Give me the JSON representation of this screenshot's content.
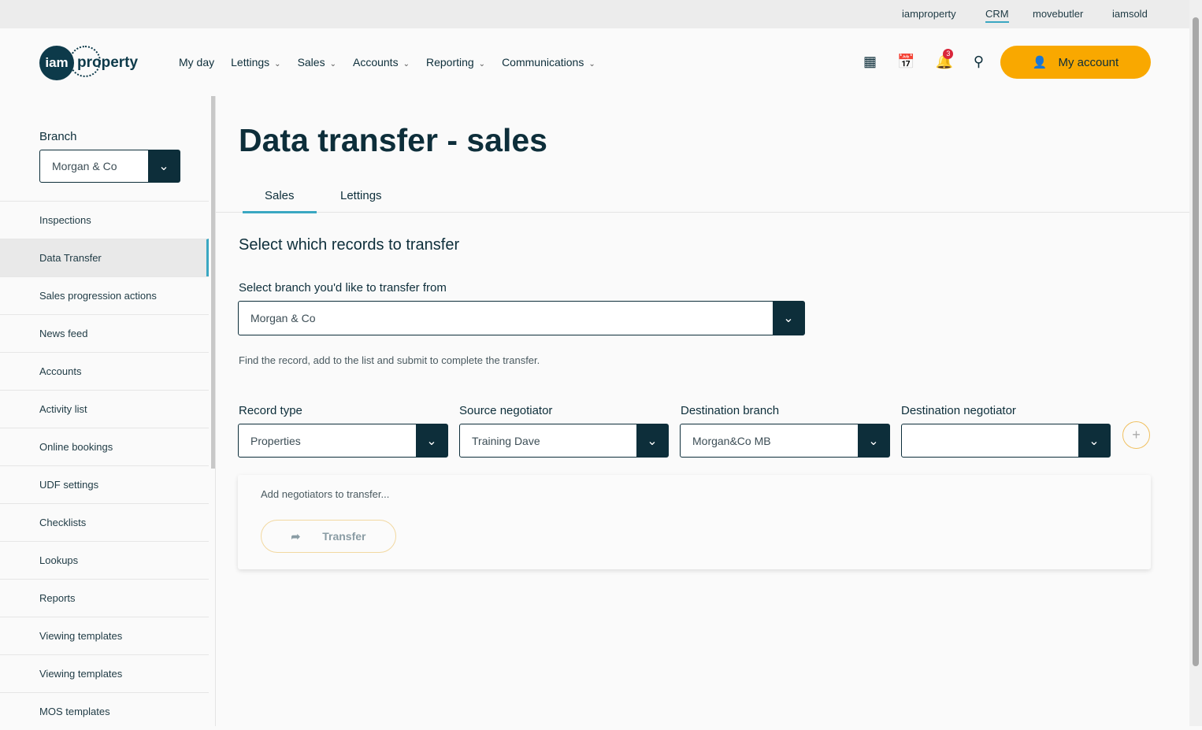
{
  "topbar": {
    "links": [
      "iamproperty",
      "CRM",
      "movebutler",
      "iamsold"
    ]
  },
  "header": {
    "logo": "iam property",
    "nav": [
      "My day",
      "Lettings",
      "Sales",
      "Accounts",
      "Reporting",
      "Communications"
    ],
    "notification_count": "3",
    "account_label": "My account"
  },
  "sidebar": {
    "branch_label": "Branch",
    "branch_value": "Morgan & Co",
    "items": [
      "Inspections",
      "Data Transfer",
      "Sales progression actions",
      "News feed",
      "Accounts",
      "Activity list",
      "Online bookings",
      "UDF settings",
      "Checklists",
      "Lookups",
      "Reports",
      "Viewing templates",
      "Viewing templates",
      "MOS templates"
    ]
  },
  "main": {
    "title": "Data transfer - sales",
    "tabs": [
      "Sales",
      "Lettings"
    ],
    "section_title": "Select which records to transfer",
    "branch_label": "Select branch you'd like to transfer from",
    "branch_value": "Morgan & Co",
    "hint": "Find the record, add to the list and submit to complete the transfer.",
    "fields": [
      {
        "label": "Record type",
        "value": "Properties"
      },
      {
        "label": "Source negotiator",
        "value": "Training Dave"
      },
      {
        "label": "Destination branch",
        "value": "Morgan&Co MB"
      },
      {
        "label": "Destination negotiator",
        "value": ""
      }
    ],
    "card_text": "Add negotiators to transfer...",
    "transfer_label": "Transfer"
  },
  "colors": {
    "accent": "#f9a800",
    "primary": "#0d2e3a",
    "tab_active": "#3aa7c2"
  }
}
